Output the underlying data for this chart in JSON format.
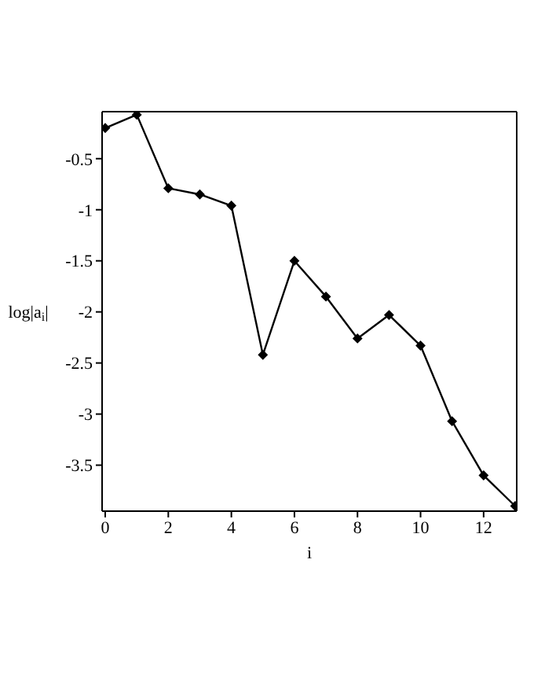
{
  "chart_data": {
    "type": "line",
    "xlabel": "i",
    "ylabel": "log|a$_{i}$|",
    "x": [
      0,
      1,
      2,
      3,
      4,
      5,
      6,
      7,
      8,
      9,
      10,
      11,
      12,
      13
    ],
    "series": [
      {
        "color": "#000000",
        "values": [
          -0.2,
          -0.07,
          -0.79,
          -0.85,
          -0.96,
          -2.42,
          -1.5,
          -1.85,
          -2.26,
          -2.03,
          -2.33,
          -3.07,
          -3.6,
          -3.9
        ]
      }
    ],
    "xlim": [
      -0.1,
      13.05
    ],
    "xticks": [
      0,
      2,
      4,
      6,
      8,
      10,
      12
    ],
    "ylim": [
      -3.95,
      -0.04
    ],
    "yticks": [
      -0.5,
      -1,
      -1.5,
      -2,
      -2.5,
      -3,
      -3.5
    ],
    "marker": "diamond",
    "line_style": "solid",
    "grid": false,
    "legend": false
  }
}
